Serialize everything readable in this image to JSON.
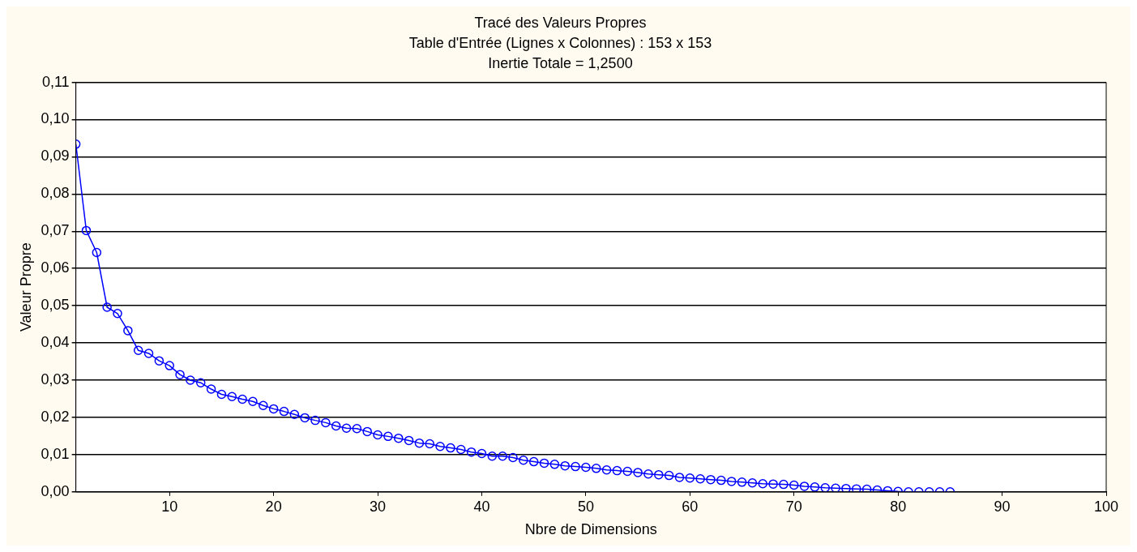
{
  "chart_data": {
    "type": "line",
    "title": "Tracé des Valeurs Propres",
    "subtitle": "Table d'Entrée (Lignes x Colonnes) : 153 x 153",
    "annotations": [
      "Inertie Totale = 1,2500"
    ],
    "xlabel": "Nbre de Dimensions",
    "ylabel": "Valeur Propre",
    "x": [
      1,
      2,
      3,
      4,
      5,
      6,
      7,
      8,
      9,
      10,
      11,
      12,
      13,
      14,
      15,
      16,
      17,
      18,
      19,
      20,
      21,
      22,
      23,
      24,
      25,
      26,
      27,
      28,
      29,
      30,
      31,
      32,
      33,
      34,
      35,
      36,
      37,
      38,
      39,
      40,
      41,
      42,
      43,
      44,
      45,
      46,
      47,
      48,
      49,
      50,
      51,
      52,
      53,
      54,
      55,
      56,
      57,
      58,
      59,
      60,
      61,
      62,
      63,
      64,
      65,
      66,
      67,
      68,
      69,
      70,
      71,
      72,
      73,
      74,
      75,
      76,
      77,
      78,
      79,
      80,
      81,
      82,
      83,
      84,
      85
    ],
    "series": [
      {
        "color": "#0000ff",
        "values": [
          0.0934,
          0.0702,
          0.0643,
          0.0496,
          0.0479,
          0.0433,
          0.038,
          0.0372,
          0.0352,
          0.0339,
          0.0315,
          0.03,
          0.0293,
          0.0276,
          0.0262,
          0.0256,
          0.0249,
          0.0243,
          0.0232,
          0.0223,
          0.0216,
          0.0208,
          0.0199,
          0.0192,
          0.0186,
          0.0177,
          0.0171,
          0.017,
          0.0162,
          0.0153,
          0.0149,
          0.0144,
          0.0138,
          0.0131,
          0.0129,
          0.0122,
          0.0118,
          0.0114,
          0.0107,
          0.0103,
          0.0096,
          0.0096,
          0.0092,
          0.0085,
          0.0081,
          0.0077,
          0.0074,
          0.007,
          0.0068,
          0.0066,
          0.0063,
          0.0059,
          0.0057,
          0.0055,
          0.0052,
          0.0048,
          0.0046,
          0.0044,
          0.0039,
          0.0037,
          0.0035,
          0.0033,
          0.0031,
          0.0028,
          0.0026,
          0.0024,
          0.0022,
          0.0021,
          0.002,
          0.0018,
          0.0015,
          0.0013,
          0.0011,
          0.001,
          0.0009,
          0.0008,
          0.0007,
          0.0005,
          0.0003,
          0.0001,
          0,
          0,
          0,
          0,
          0
        ]
      }
    ],
    "xlim": [
      1,
      100
    ],
    "xticks": [
      10,
      20,
      30,
      40,
      50,
      60,
      70,
      80,
      90,
      100
    ],
    "ylim": [
      0,
      0.11
    ],
    "yticks": [
      {
        "value": 0,
        "label": "0,00"
      },
      {
        "value": 0.01,
        "label": "0,01"
      },
      {
        "value": 0.02,
        "label": "0,02"
      },
      {
        "value": 0.03,
        "label": "0,03"
      },
      {
        "value": 0.04,
        "label": "0,04"
      },
      {
        "value": 0.05,
        "label": "0,05"
      },
      {
        "value": 0.06,
        "label": "0,06"
      },
      {
        "value": 0.07,
        "label": "0,07"
      },
      {
        "value": 0.08,
        "label": "0,08"
      },
      {
        "value": 0.09,
        "label": "0,09"
      },
      {
        "value": 0.1,
        "label": "0,10"
      },
      {
        "value": 0.11,
        "label": "0,11"
      }
    ],
    "grid": "y",
    "legend": false,
    "marker": "circle",
    "line_style": "solid"
  }
}
